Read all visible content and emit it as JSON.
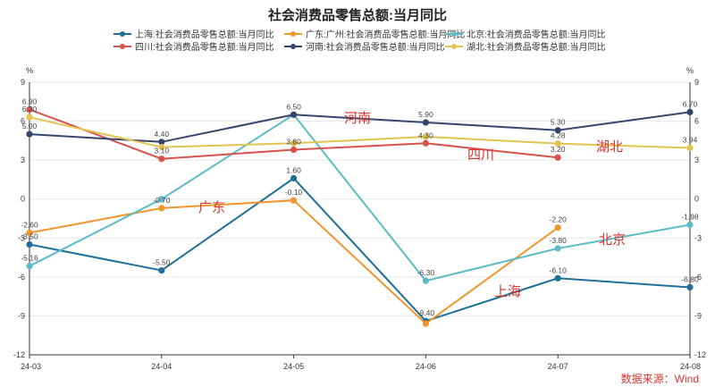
{
  "chart_data": {
    "type": "line",
    "title": "社会消费品零售总额:当月同比",
    "unit_left": "%",
    "unit_right": "%",
    "x": [
      "24-03",
      "24-04",
      "24-05",
      "24-06",
      "24-07",
      "24-08"
    ],
    "ylim": [
      -12,
      9
    ],
    "yticks": [
      -12,
      -9,
      -6,
      -3,
      0,
      3,
      6,
      9
    ],
    "grid": "horizontal",
    "legend_position": "top",
    "series": [
      {
        "name": "上海:社会消费品零售总额:当月同比",
        "color": "#1f6f9a",
        "values": [
          -3.5,
          -5.5,
          1.6,
          -9.4,
          -6.1,
          -6.8
        ],
        "labels": [
          "-3.50",
          "-5.50",
          "1.60",
          "-9.40",
          "-6.10",
          "-6.80"
        ]
      },
      {
        "name": "广东:广州:社会消费品零售总额:当月同比",
        "color": "#f0962e",
        "values": [
          -2.6,
          -0.7,
          -0.1,
          -9.6,
          -2.2,
          null
        ],
        "labels": [
          "-2.60",
          "-0.70",
          "-0.10",
          "",
          "-2.20",
          ""
        ]
      },
      {
        "name": "北京:社会消费品零售总额:当月同比",
        "color": "#5bbcc6",
        "values": [
          -5.16,
          0,
          6.5,
          -6.3,
          -3.8,
          -1.98
        ],
        "labels": [
          "-5.16",
          "",
          "",
          "-6.30",
          "-3.80",
          "-1.98"
        ]
      },
      {
        "name": "四川:社会消费品零售总额:当月同比",
        "color": "#d6524d",
        "values": [
          6.9,
          3.1,
          3.8,
          4.3,
          3.2,
          null
        ],
        "labels": [
          "6.90",
          "3.10",
          "3.80",
          "4.30",
          "3.20",
          ""
        ]
      },
      {
        "name": "河南:社会消费品零售总额:当月同比",
        "color": "#34466e",
        "values": [
          5.0,
          4.4,
          6.5,
          5.9,
          5.3,
          6.7
        ],
        "labels": [
          "5.00",
          "4.40",
          "6.50",
          "5.90",
          "5.30",
          "6.70"
        ]
      },
      {
        "name": "湖北:社会消费品零售总额:当月同比",
        "color": "#e3c352",
        "values": [
          6.3,
          4.0,
          4.3,
          4.8,
          4.28,
          3.94
        ],
        "labels": [
          "6.30",
          "",
          "",
          "",
          "4.28",
          "3.94"
        ]
      }
    ],
    "annotations": [
      "河南",
      "四川",
      "湖北",
      "广东",
      "北京",
      "上海"
    ]
  },
  "source": "数据来源：Wind"
}
